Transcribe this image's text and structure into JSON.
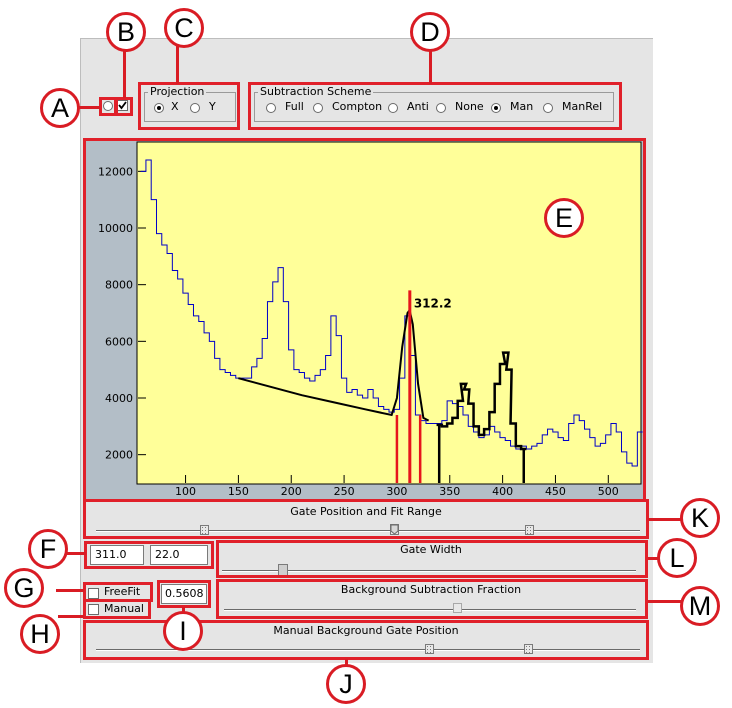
{
  "callouts": [
    "A",
    "B",
    "C",
    "D",
    "E",
    "F",
    "G",
    "H",
    "I",
    "J",
    "K",
    "L",
    "M"
  ],
  "projection": {
    "title": "Projection",
    "options": [
      {
        "label": "X",
        "checked": true
      },
      {
        "label": "Y",
        "checked": false
      }
    ]
  },
  "subtraction": {
    "title": "Subtraction Scheme",
    "options": [
      {
        "label": "Full",
        "checked": false
      },
      {
        "label": "Compton",
        "checked": false
      },
      {
        "label": "Anti",
        "checked": false
      },
      {
        "label": "None",
        "checked": false
      },
      {
        "label": "Man",
        "checked": true
      },
      {
        "label": "ManRel",
        "checked": false
      }
    ]
  },
  "top_controls": {
    "radio_checked": false,
    "checkbox_checked": true
  },
  "plot": {
    "peak_label": "312.2",
    "colors": {
      "background": "#ffff99",
      "frame": "#b3bec7",
      "histogram": "#0000c8",
      "fit": "#000000",
      "gate": "#e6151c"
    },
    "x_ticks": [
      "100",
      "150",
      "200",
      "250",
      "300",
      "350",
      "400",
      "450",
      "500"
    ],
    "y_ticks": [
      "12000",
      "10000",
      "8000",
      "6000",
      "4000",
      "2000"
    ]
  },
  "chart_data": {
    "type": "line",
    "title": "",
    "xlabel": "",
    "ylabel": "",
    "xlim": [
      55,
      530
    ],
    "ylim": [
      1000,
      13000
    ],
    "grid": false,
    "series": [
      {
        "x": [
          60,
          65,
          70,
          75,
          80,
          85,
          90,
          95,
          100,
          105,
          110,
          115,
          120,
          125,
          130,
          135,
          140,
          145,
          150,
          155,
          160,
          165,
          170,
          175,
          180,
          185,
          190,
          195,
          200,
          205,
          210,
          215,
          220,
          225,
          230,
          235,
          240,
          245,
          250,
          255,
          260,
          265,
          270,
          275,
          280,
          285,
          290,
          295,
          300,
          305,
          310,
          315,
          320,
          325,
          330,
          335,
          340,
          345,
          350,
          355,
          360,
          365,
          370,
          375,
          380,
          385,
          390,
          395,
          400,
          405,
          410,
          415,
          420,
          425,
          430,
          435,
          440,
          445,
          450,
          455,
          460,
          465,
          470,
          475,
          480,
          485,
          490,
          495,
          500,
          505,
          510,
          515,
          520,
          525,
          530
        ],
        "values": [
          12000,
          12400,
          11000,
          9800,
          9400,
          9100,
          8500,
          8200,
          7700,
          7300,
          6900,
          6700,
          6300,
          6000,
          5400,
          5000,
          4900,
          4800,
          4700,
          4700,
          4700,
          5100,
          5400,
          6100,
          7400,
          8100,
          8600,
          7400,
          5700,
          5000,
          4900,
          4700,
          4600,
          4800,
          5000,
          5500,
          6900,
          6200,
          4700,
          4200,
          4300,
          4100,
          4000,
          4300,
          4000,
          3700,
          3600,
          3500,
          3600,
          4700,
          6900,
          5500,
          3400,
          3200,
          3100,
          3100,
          3100,
          3200,
          3900,
          3800,
          3700,
          3400,
          3000,
          2800,
          2600,
          2700,
          3000,
          2800,
          2600,
          2500,
          2300,
          2200,
          2300,
          2200,
          2300,
          2400,
          2700,
          2900,
          2800,
          2600,
          2500,
          3100,
          3400,
          3200,
          2900,
          2600,
          2300,
          2400,
          2700,
          3100,
          2800,
          2100,
          1700,
          1600,
          2800
        ]
      },
      {
        "x": [
          150,
          180,
          210,
          240,
          270,
          295,
          300,
          305,
          310,
          312,
          315,
          320,
          325,
          330
        ],
        "values": [
          4700,
          4400,
          4100,
          3850,
          3600,
          3400,
          4000,
          5800,
          7000,
          7100,
          6600,
          4500,
          3300,
          3200
        ]
      },
      {
        "x": [
          340,
          345,
          350,
          355,
          360,
          363,
          366,
          370,
          375,
          380,
          385,
          390,
          395,
          400,
          403,
          406,
          410,
          415,
          420
        ],
        "values": [
          3050,
          3000,
          3100,
          3300,
          3900,
          4500,
          4300,
          3800,
          3000,
          2700,
          2900,
          3500,
          4500,
          5200,
          5600,
          5000,
          3100,
          2300,
          2200
        ]
      }
    ],
    "gates": [
      {
        "name": "left",
        "x": 300
      },
      {
        "name": "centre",
        "x": 312.2
      },
      {
        "name": "right",
        "x": 322
      }
    ],
    "bkg_gates": [
      {
        "x": 340
      },
      {
        "x": 420
      }
    ]
  },
  "gate_position": {
    "label": "Gate Position and Fit Range",
    "thumbs": [
      0.2,
      0.55,
      0.8
    ]
  },
  "gate_width": {
    "label": "Gate Width",
    "value_fraction": 0.17
  },
  "background_fraction": {
    "label": "Background Subtraction Fraction",
    "value_fraction": 0.58
  },
  "manual_bkg": {
    "label": "Manual Background Gate Position",
    "thumbs": [
      0.6,
      0.8
    ]
  },
  "fields": {
    "position": "311.0",
    "width": "22.0",
    "fraction": "0.5608"
  },
  "freefit": {
    "label": "FreeFit",
    "checked": false
  },
  "manual": {
    "label": "Manual",
    "checked": false
  }
}
